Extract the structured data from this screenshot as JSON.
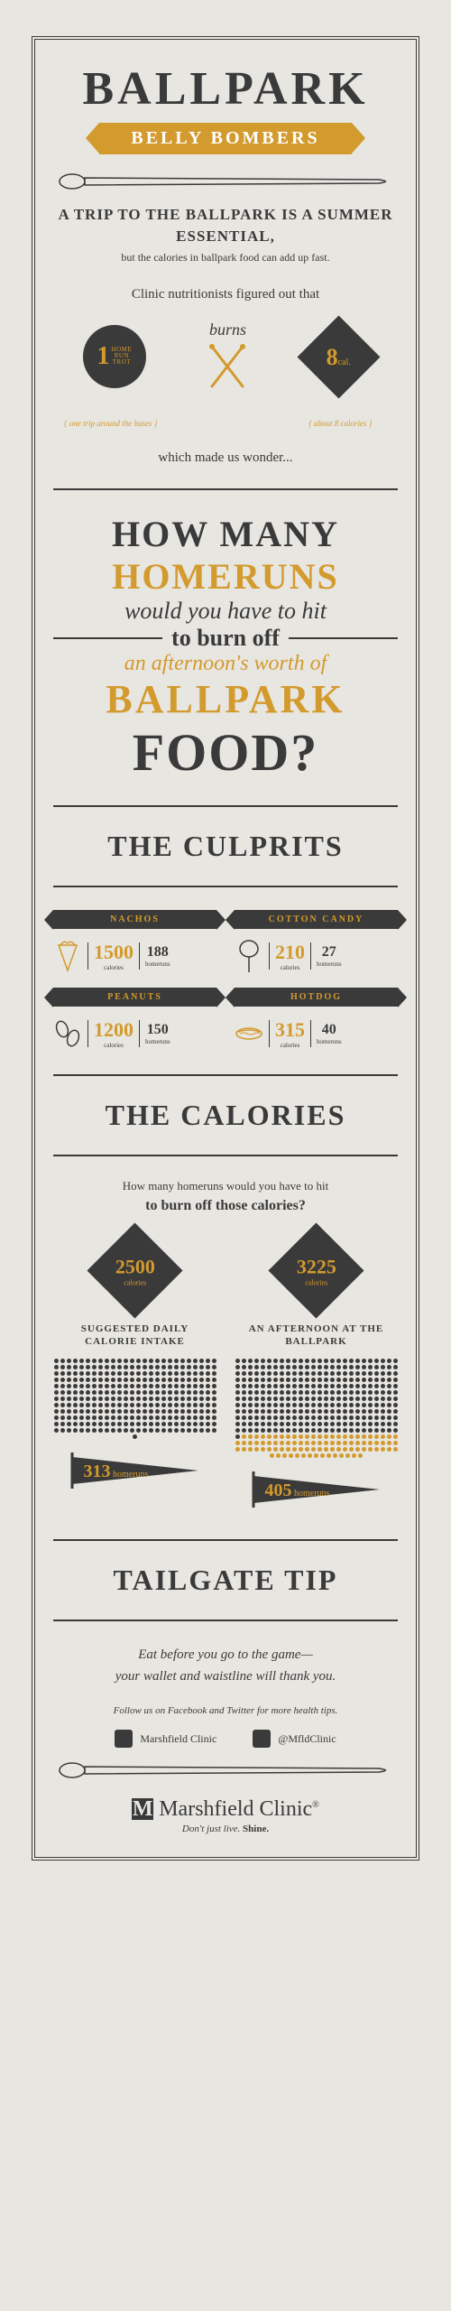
{
  "colors": {
    "bg": "#e8e6e0",
    "dark": "#3a3a3a",
    "gold": "#d39a2e",
    "white": "#ffffff"
  },
  "title": {
    "main": "BALLPARK",
    "banner": "BELLY BOMBERS"
  },
  "intro": {
    "bold": "A TRIP TO THE BALLPARK IS A SUMMER ESSENTIAL,",
    "sub": "but the calories in ballpark food can add up fast.",
    "nutritionists": "Clinic nutritionists figured out that"
  },
  "trot": {
    "number": "1",
    "label": "HOME\nRUN\nTROT",
    "burns": "burns",
    "cal_number": "8",
    "cal_label": "cal.",
    "caption_left": "{ one trip around the bases }",
    "caption_right": "{ about 8 calories }",
    "wonder": "which made us wonder..."
  },
  "headline": {
    "l1": "HOW MANY",
    "l2": "HOMERUNS",
    "l3": "would you have to hit",
    "l4": "to burn off",
    "l5": "an afternoon's worth of",
    "l6": "BALLPARK",
    "l7": "FOOD?"
  },
  "culprits": {
    "header": "THE CULPRITS",
    "items": [
      {
        "name": "NACHOS",
        "calories": "1500",
        "homeruns": "188"
      },
      {
        "name": "COTTON CANDY",
        "calories": "210",
        "homeruns": "27"
      },
      {
        "name": "PEANUTS",
        "calories": "1200",
        "homeruns": "150"
      },
      {
        "name": "HOTDOG",
        "calories": "315",
        "homeruns": "40"
      }
    ],
    "cal_label": "calories",
    "hr_label": "homeruns"
  },
  "calories": {
    "header": "THE CALORIES",
    "sub": "How many homeruns would you have to hit",
    "bold": "to burn off those calories?",
    "cols": [
      {
        "value": "2500",
        "label": "SUGGESTED DAILY CALORIE INTAKE",
        "homeruns": "313",
        "dots": 313,
        "extra_dots": 0
      },
      {
        "value": "3225",
        "label": "AN AFTERNOON AT THE BALLPARK",
        "homeruns": "405",
        "dots": 313,
        "extra_dots": 92
      }
    ],
    "cal_label": "calories",
    "hr_label": "homeruns"
  },
  "tip": {
    "header": "TAILGATE TIP",
    "text": "Eat before you go to the game—\nyour wallet and waistline will thank you."
  },
  "social": {
    "follow": "Follow us on Facebook and Twitter for more health tips.",
    "fb": "Marshfield Clinic",
    "tw": "@MfldClinic"
  },
  "footer": {
    "brand": "Marshfield Clinic",
    "tagline": "Don't just live.",
    "shine": "Shine."
  }
}
